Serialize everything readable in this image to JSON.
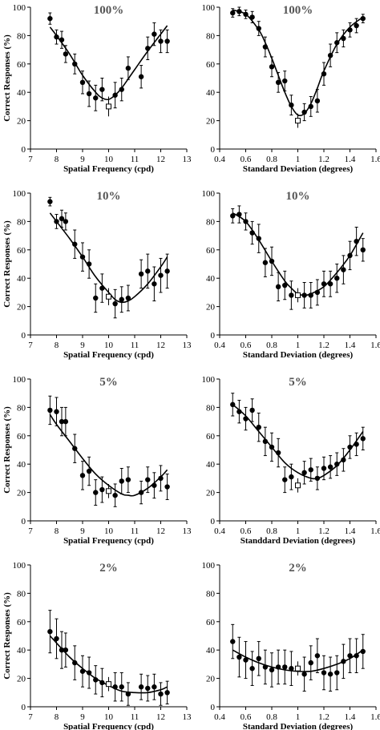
{
  "chart_data": [
    {
      "type": "scatter",
      "title": "100%",
      "xlabel": "Spatial Frequency (cpd)",
      "ylabel": "Correct Responses (%)",
      "xlim": [
        7,
        13
      ],
      "ylim": [
        0,
        100
      ],
      "xticks": [
        7,
        8,
        9,
        10,
        11,
        12,
        13
      ],
      "yticks": [
        0,
        20,
        40,
        60,
        80,
        100
      ],
      "points": {
        "x": [
          7.75,
          8.0,
          8.2,
          8.35,
          8.7,
          9.0,
          9.25,
          9.5,
          9.75,
          10.25,
          10.5,
          10.75,
          11.25,
          11.5,
          11.75,
          12.0,
          12.25
        ],
        "y": [
          92,
          79,
          77,
          67,
          60,
          47,
          39,
          36,
          42,
          38,
          42,
          57,
          51,
          71,
          81,
          76,
          76
        ],
        "err": [
          4,
          5,
          6,
          6,
          7,
          8,
          9,
          9,
          8,
          9,
          8,
          8,
          8,
          8,
          8,
          8,
          8
        ]
      },
      "standard": {
        "x": 10,
        "y": 30,
        "err": 7
      },
      "fit_line": {
        "x": [
          7.75,
          8.0,
          8.5,
          9.0,
          9.5,
          9.75,
          10.0,
          10.25,
          10.5,
          11.0,
          11.5,
          12.0,
          12.25
        ],
        "y": [
          86,
          80,
          67,
          52,
          40,
          36,
          35,
          38,
          43,
          56,
          69,
          81,
          87
        ]
      }
    },
    {
      "type": "scatter",
      "title": "100%",
      "xlabel": "Standard Deviation (degrees)",
      "ylabel": "",
      "xlim": [
        0.4,
        1.6
      ],
      "ylim": [
        0,
        100
      ],
      "xticks": [
        0.4,
        0.6,
        0.8,
        1,
        1.2,
        1.4,
        1.6
      ],
      "yticks": [
        0,
        20,
        40,
        60,
        80,
        100
      ],
      "points": {
        "x": [
          0.5,
          0.55,
          0.6,
          0.65,
          0.7,
          0.75,
          0.8,
          0.85,
          0.9,
          0.95,
          1.05,
          1.1,
          1.15,
          1.2,
          1.25,
          1.3,
          1.35,
          1.4,
          1.45,
          1.5
        ],
        "y": [
          96,
          97,
          95,
          93,
          85,
          72,
          58,
          47,
          48,
          31,
          26,
          30,
          34,
          53,
          66,
          75,
          78,
          84,
          87,
          92
        ],
        "err": [
          3,
          3,
          3,
          4,
          5,
          7,
          7,
          7,
          7,
          7,
          6,
          7,
          8,
          8,
          8,
          7,
          6,
          5,
          5,
          3
        ]
      },
      "standard": {
        "x": 1.0,
        "y": 20,
        "err": 5
      },
      "fit_line": {
        "x": [
          0.5,
          0.6,
          0.7,
          0.75,
          0.8,
          0.85,
          0.9,
          0.95,
          1.0,
          1.05,
          1.1,
          1.15,
          1.2,
          1.3,
          1.4,
          1.5
        ],
        "y": [
          98,
          95,
          84,
          75,
          64,
          52,
          40,
          30,
          24,
          25,
          32,
          43,
          55,
          74,
          86,
          93
        ]
      }
    },
    {
      "type": "scatter",
      "title": "10%",
      "xlabel": "Spatial Frequency (cpd)",
      "ylabel": "Correct Responses (%)",
      "xlim": [
        7,
        13
      ],
      "ylim": [
        0,
        100
      ],
      "xticks": [
        7,
        8,
        9,
        10,
        11,
        12,
        13
      ],
      "yticks": [
        0,
        20,
        40,
        60,
        80,
        100
      ],
      "points": {
        "x": [
          7.75,
          8.0,
          8.2,
          8.35,
          8.7,
          9.0,
          9.25,
          9.5,
          9.75,
          10.25,
          10.5,
          10.75,
          11.25,
          11.5,
          11.75,
          12.0,
          12.25
        ],
        "y": [
          94,
          80,
          82,
          80,
          64,
          55,
          50,
          26,
          33,
          22,
          25,
          26,
          43,
          45,
          36,
          42,
          45
        ],
        "err": [
          3,
          5,
          6,
          6,
          10,
          10,
          10,
          10,
          10,
          10,
          9,
          9,
          10,
          12,
          12,
          12,
          12
        ]
      },
      "standard": {
        "x": 10,
        "y": 27,
        "err": 6
      },
      "fit_line": {
        "x": [
          7.75,
          8.0,
          8.5,
          9.0,
          9.5,
          10.0,
          10.25,
          10.5,
          10.75,
          11.0,
          11.5,
          12.0,
          12.25
        ],
        "y": [
          86,
          80,
          68,
          55,
          41,
          30,
          25,
          23,
          24,
          27,
          36,
          48,
          55
        ]
      }
    },
    {
      "type": "scatter",
      "title": "10%",
      "xlabel": "Standard Deviation (degrees)",
      "ylabel": "",
      "xlim": [
        0.4,
        1.6
      ],
      "ylim": [
        0,
        100
      ],
      "xticks": [
        0.4,
        0.6,
        0.8,
        1,
        1.2,
        1.4,
        1.6
      ],
      "yticks": [
        0,
        20,
        40,
        60,
        80,
        100
      ],
      "points": {
        "x": [
          0.5,
          0.55,
          0.6,
          0.65,
          0.7,
          0.75,
          0.8,
          0.85,
          0.9,
          0.95,
          1.05,
          1.1,
          1.15,
          1.2,
          1.25,
          1.3,
          1.35,
          1.4,
          1.45,
          1.5
        ],
        "y": [
          84,
          85,
          80,
          72,
          68,
          51,
          52,
          34,
          35,
          28,
          28,
          28,
          30,
          36,
          36,
          40,
          46,
          56,
          66,
          60
        ],
        "err": [
          5,
          6,
          6,
          8,
          10,
          10,
          10,
          10,
          10,
          10,
          9,
          9,
          9,
          9,
          9,
          10,
          10,
          10,
          10,
          8
        ]
      },
      "standard": {
        "x": 1.0,
        "y": 28,
        "err": 5
      },
      "fit_line": {
        "x": [
          0.5,
          0.6,
          0.7,
          0.8,
          0.9,
          0.95,
          1.0,
          1.05,
          1.1,
          1.2,
          1.3,
          1.4,
          1.5
        ],
        "y": [
          86,
          80,
          67,
          52,
          38,
          33,
          29,
          28,
          29,
          34,
          44,
          56,
          72
        ]
      }
    },
    {
      "type": "scatter",
      "title": "5%",
      "xlabel": "Spatial Frequency (cpd)",
      "ylabel": "Correct Responses (%)",
      "xlim": [
        7,
        13
      ],
      "ylim": [
        0,
        100
      ],
      "xticks": [
        7,
        8,
        9,
        10,
        11,
        12,
        13
      ],
      "yticks": [
        0,
        20,
        40,
        60,
        80,
        100
      ],
      "points": {
        "x": [
          7.75,
          8.0,
          8.2,
          8.35,
          8.7,
          9.0,
          9.25,
          9.5,
          9.75,
          10.25,
          10.5,
          10.75,
          11.25,
          11.5,
          11.75,
          12.0,
          12.25
        ],
        "y": [
          78,
          77,
          70,
          70,
          51,
          32,
          35,
          20,
          22,
          18,
          28,
          29,
          20,
          29,
          25,
          30,
          24
        ],
        "err": [
          10,
          10,
          10,
          10,
          10,
          10,
          10,
          9,
          9,
          8,
          9,
          9,
          8,
          9,
          9,
          9,
          9
        ]
      },
      "standard": {
        "x": 10,
        "y": 21,
        "err": 5
      },
      "fit_line": {
        "x": [
          7.75,
          8.0,
          8.5,
          9.0,
          9.5,
          10.0,
          10.5,
          10.75,
          11.0,
          11.5,
          12.0,
          12.25
        ],
        "y": [
          75,
          68,
          56,
          44,
          33,
          25,
          19,
          18,
          18,
          23,
          31,
          36
        ]
      }
    },
    {
      "type": "scatter",
      "title": "5%",
      "xlabel": "Standdard Deviation (degrees)",
      "ylabel": "",
      "xlim": [
        0.4,
        1.6
      ],
      "ylim": [
        0,
        100
      ],
      "xticks": [
        0.4,
        0.6,
        0.8,
        1,
        1.2,
        1.4,
        1.6
      ],
      "yticks": [
        0,
        20,
        40,
        60,
        80,
        100
      ],
      "points": {
        "x": [
          0.5,
          0.55,
          0.6,
          0.65,
          0.7,
          0.75,
          0.8,
          0.85,
          0.9,
          0.95,
          1.05,
          1.1,
          1.15,
          1.2,
          1.25,
          1.3,
          1.35,
          1.4,
          1.45,
          1.5
        ],
        "y": [
          82,
          77,
          72,
          78,
          66,
          56,
          52,
          48,
          29,
          31,
          34,
          36,
          30,
          37,
          38,
          40,
          43,
          52,
          54,
          58
        ],
        "err": [
          8,
          8,
          8,
          8,
          10,
          10,
          10,
          10,
          9,
          9,
          8,
          8,
          8,
          8,
          8,
          8,
          8,
          8,
          8,
          8
        ]
      },
      "standard": {
        "x": 1.0,
        "y": 25,
        "err": 5
      },
      "fit_line": {
        "x": [
          0.5,
          0.6,
          0.7,
          0.8,
          0.9,
          1.0,
          1.1,
          1.15,
          1.2,
          1.3,
          1.4,
          1.5
        ],
        "y": [
          82,
          74,
          63,
          52,
          41,
          34,
          30,
          30,
          32,
          39,
          50,
          63
        ]
      }
    },
    {
      "type": "scatter",
      "title": "2%",
      "xlabel": "Spatial Frequency (cpd)",
      "ylabel": "Correct Responses (%)",
      "xlim": [
        7,
        13
      ],
      "ylim": [
        0,
        100
      ],
      "xticks": [
        7,
        8,
        9,
        10,
        11,
        12,
        13
      ],
      "yticks": [
        0,
        20,
        40,
        60,
        80,
        100
      ],
      "points": {
        "x": [
          7.75,
          8.0,
          8.2,
          8.35,
          8.7,
          9.0,
          9.25,
          9.5,
          9.75,
          10.25,
          10.5,
          10.75,
          11.25,
          11.5,
          11.75,
          12.0,
          12.25
        ],
        "y": [
          53,
          48,
          40,
          40,
          31,
          25,
          24,
          19,
          17,
          14,
          14,
          9,
          14,
          13,
          14,
          9,
          10
        ],
        "err": [
          15,
          14,
          13,
          12,
          12,
          11,
          11,
          10,
          10,
          10,
          10,
          8,
          9,
          9,
          9,
          8,
          8
        ]
      },
      "standard": {
        "x": 10,
        "y": 16,
        "err": 5
      },
      "fit_line": {
        "x": [
          7.75,
          8.0,
          8.5,
          9.0,
          9.5,
          10.0,
          10.5,
          11.0,
          11.5,
          12.0,
          12.25
        ],
        "y": [
          50,
          45,
          35,
          27,
          20,
          15,
          11,
          10,
          10,
          12,
          14
        ]
      }
    },
    {
      "type": "scatter",
      "title": "2%",
      "xlabel": "Standard Deviation (degrees)",
      "ylabel": "",
      "xlim": [
        0.4,
        1.6
      ],
      "ylim": [
        0,
        100
      ],
      "xticks": [
        0.4,
        0.6,
        0.8,
        1,
        1.2,
        1.4,
        1.6
      ],
      "yticks": [
        0,
        20,
        40,
        60,
        80,
        100
      ],
      "points": {
        "x": [
          0.5,
          0.55,
          0.6,
          0.65,
          0.7,
          0.75,
          0.8,
          0.85,
          0.9,
          0.95,
          1.05,
          1.1,
          1.15,
          1.2,
          1.25,
          1.3,
          1.35,
          1.4,
          1.45,
          1.5
        ],
        "y": [
          46,
          35,
          33,
          27,
          34,
          28,
          26,
          28,
          28,
          27,
          23,
          31,
          36,
          24,
          23,
          24,
          32,
          36,
          36,
          39
        ],
        "err": [
          12,
          14,
          13,
          12,
          12,
          12,
          12,
          12,
          12,
          12,
          12,
          12,
          12,
          12,
          12,
          12,
          12,
          12,
          12,
          12
        ]
      },
      "standard": {
        "x": 1.0,
        "y": 27,
        "err": 5
      },
      "fit_line": {
        "x": [
          0.5,
          0.6,
          0.7,
          0.8,
          0.9,
          1.0,
          1.1,
          1.2,
          1.3,
          1.4,
          1.5
        ],
        "y": [
          40,
          35,
          31,
          28,
          26,
          25,
          25,
          27,
          30,
          34,
          40
        ]
      }
    }
  ]
}
